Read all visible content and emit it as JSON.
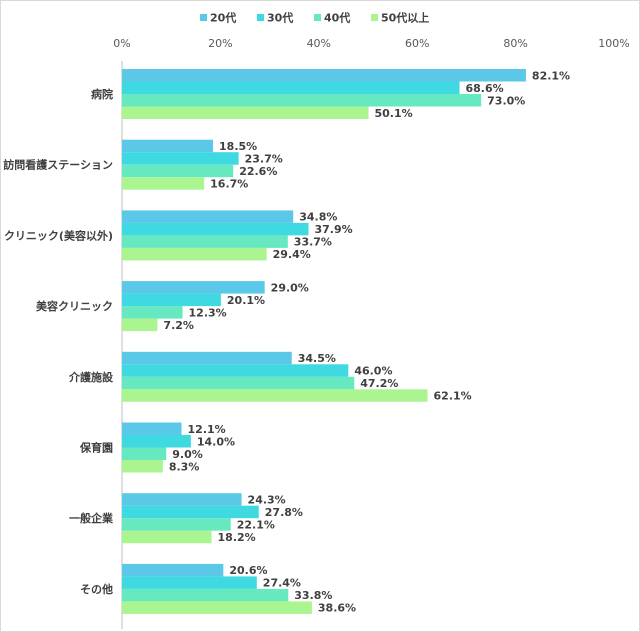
{
  "chart_data": {
    "type": "bar",
    "orientation": "horizontal",
    "categories": [
      "病院",
      "訪問看護ステーション",
      "クリニック(美容以外)",
      "美容クリニック",
      "介護施設",
      "保育園",
      "一般企業",
      "その他"
    ],
    "series": [
      {
        "name": "20代",
        "color": "#5bc8e8",
        "values": [
          82.1,
          18.5,
          34.8,
          29.0,
          34.5,
          12.1,
          24.3,
          20.6
        ],
        "labels": [
          "82.1%",
          "18.5%",
          "34.8%",
          "29.0%",
          "34.5%",
          "12.1%",
          "24.3%",
          "20.6%"
        ]
      },
      {
        "name": "30代",
        "color": "#3fd9e2",
        "values": [
          68.6,
          23.7,
          37.9,
          20.1,
          46.0,
          14.0,
          27.8,
          27.4
        ],
        "labels": [
          "68.6%",
          "23.7%",
          "37.9%",
          "20.1%",
          "46.0%",
          "14.0%",
          "27.8%",
          "27.4%"
        ]
      },
      {
        "name": "40代",
        "color": "#66e8c0",
        "values": [
          73.0,
          22.6,
          33.7,
          12.3,
          47.2,
          9.0,
          22.1,
          33.8
        ],
        "labels": [
          "73.0%",
          "22.6%",
          "33.7%",
          "12.3%",
          "47.2%",
          "9.0%",
          "22.1%",
          "33.8%"
        ]
      },
      {
        "name": "50代以上",
        "color": "#aaf590",
        "values": [
          50.1,
          16.7,
          29.4,
          7.2,
          62.1,
          8.3,
          18.2,
          38.6
        ],
        "labels": [
          "50.1%",
          "16.7%",
          "29.4%",
          "7.2%",
          "62.1%",
          "8.3%",
          "18.2%",
          "38.6%"
        ]
      }
    ],
    "xlim": [
      0,
      100
    ],
    "x_ticks": [
      0,
      20,
      40,
      60,
      80,
      100
    ],
    "x_tick_labels": [
      "0%",
      "20%",
      "40%",
      "60%",
      "80%",
      "100%"
    ],
    "axis_position": "top",
    "gridlines": false,
    "legend_position": "top-center",
    "data_labels": true
  }
}
